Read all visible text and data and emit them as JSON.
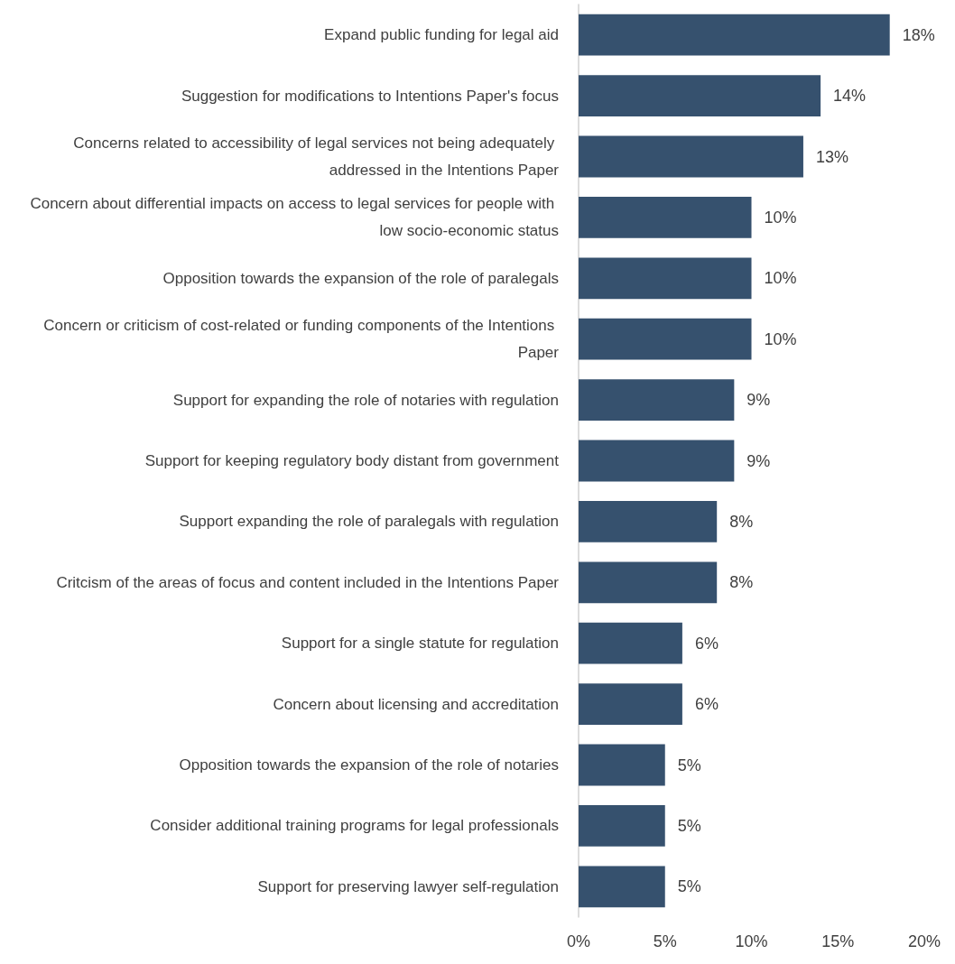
{
  "chart_data": {
    "type": "bar",
    "orientation": "horizontal",
    "categories": [
      "Expand public funding for legal aid",
      "Suggestion for modifications to Intentions Paper's focus",
      "Concerns related to accessibility of legal services not being adequately addressed in the Intentions Paper",
      "Concern about differential impacts on access to legal services for people with low socio-economic status",
      "Opposition towards the expansion of the role of paralegals",
      "Concern or criticism of cost-related or funding components of the Intentions Paper",
      "Support for expanding the role of notaries with regulation",
      "Support for keeping regulatory body distant from government",
      "Support expanding the role of paralegals with regulation",
      "Critcism of the areas of focus and content included in the Intentions Paper",
      "Support for a single statute for regulation",
      "Concern about licensing and accreditation",
      "Opposition towards the expansion of the role of notaries",
      "Consider additional training programs for legal professionals",
      "Support for preserving lawyer self-regulation"
    ],
    "values": [
      18,
      14,
      13,
      10,
      10,
      10,
      9,
      9,
      8,
      8,
      6,
      6,
      5,
      5,
      5
    ],
    "value_labels": [
      "18%",
      "14%",
      "13%",
      "10%",
      "10%",
      "10%",
      "9%",
      "9%",
      "8%",
      "8%",
      "6%",
      "6%",
      "5%",
      "5%",
      "5%"
    ],
    "color": "#36516e",
    "xlim": [
      0,
      20
    ],
    "xticks": [
      {
        "value": 0,
        "label": "0%"
      },
      {
        "value": 5,
        "label": "5%"
      },
      {
        "value": 10,
        "label": "10%"
      },
      {
        "value": 15,
        "label": "15%"
      },
      {
        "value": 20,
        "label": "20%"
      }
    ],
    "grid": false
  }
}
